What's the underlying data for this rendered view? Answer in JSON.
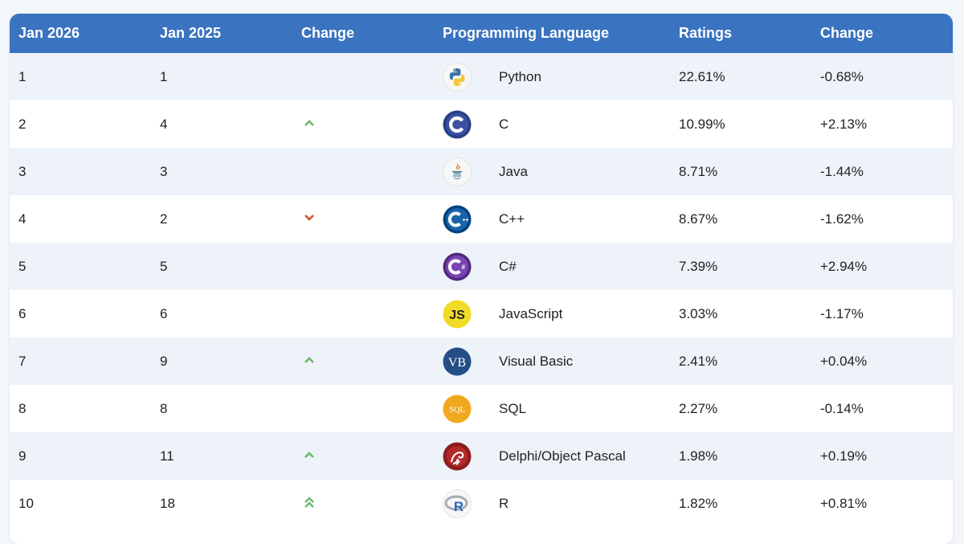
{
  "columns": [
    "Jan 2026",
    "Jan 2025",
    "Change",
    "Programming Language",
    "Ratings",
    "Change"
  ],
  "colors": {
    "header": "#3a73bf",
    "up": "#6db86b",
    "down": "#d9542c",
    "row_alt": "#eef3fa"
  },
  "rows": [
    {
      "rank_now": "1",
      "rank_prev": "1",
      "trend": "none",
      "logo": "python-logo-icon",
      "language": "Python",
      "rating": "22.61%",
      "change": "-0.68%"
    },
    {
      "rank_now": "2",
      "rank_prev": "4",
      "trend": "up",
      "logo": "c-logo-icon",
      "language": "C",
      "rating": "10.99%",
      "change": "+2.13%"
    },
    {
      "rank_now": "3",
      "rank_prev": "3",
      "trend": "none",
      "logo": "java-logo-icon",
      "language": "Java",
      "rating": "8.71%",
      "change": "-1.44%"
    },
    {
      "rank_now": "4",
      "rank_prev": "2",
      "trend": "down",
      "logo": "cpp-logo-icon",
      "language": "C++",
      "rating": "8.67%",
      "change": "-1.62%"
    },
    {
      "rank_now": "5",
      "rank_prev": "5",
      "trend": "none",
      "logo": "csharp-logo-icon",
      "language": "C#",
      "rating": "7.39%",
      "change": "+2.94%"
    },
    {
      "rank_now": "6",
      "rank_prev": "6",
      "trend": "none",
      "logo": "javascript-logo-icon",
      "language": "JavaScript",
      "rating": "3.03%",
      "change": "-1.17%"
    },
    {
      "rank_now": "7",
      "rank_prev": "9",
      "trend": "up",
      "logo": "visual-basic-logo-icon",
      "language": "Visual Basic",
      "rating": "2.41%",
      "change": "+0.04%"
    },
    {
      "rank_now": "8",
      "rank_prev": "8",
      "trend": "none",
      "logo": "sql-logo-icon",
      "language": "SQL",
      "rating": "2.27%",
      "change": "-0.14%"
    },
    {
      "rank_now": "9",
      "rank_prev": "11",
      "trend": "up",
      "logo": "delphi-logo-icon",
      "language": "Delphi/Object Pascal",
      "rating": "1.98%",
      "change": "+0.19%"
    },
    {
      "rank_now": "10",
      "rank_prev": "18",
      "trend": "double-up",
      "logo": "r-logo-icon",
      "language": "R",
      "rating": "1.82%",
      "change": "+0.81%"
    }
  ],
  "logo_text": {
    "js": "JS",
    "vb": "VB",
    "sql": "SQL",
    "r": "R"
  }
}
